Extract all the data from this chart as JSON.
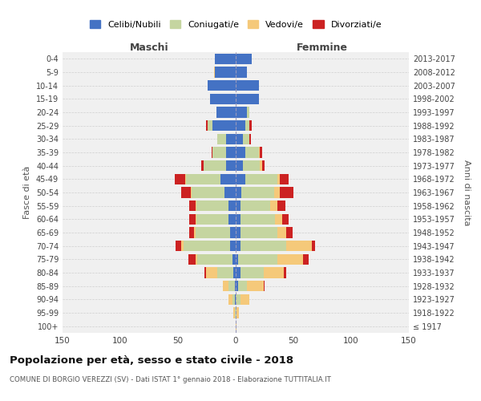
{
  "age_groups": [
    "100+",
    "95-99",
    "90-94",
    "85-89",
    "80-84",
    "75-79",
    "70-74",
    "65-69",
    "60-64",
    "55-59",
    "50-54",
    "45-49",
    "40-44",
    "35-39",
    "30-34",
    "25-29",
    "20-24",
    "15-19",
    "10-14",
    "5-9",
    "0-4"
  ],
  "birth_years": [
    "≤ 1917",
    "1918-1922",
    "1923-1927",
    "1928-1932",
    "1933-1937",
    "1938-1942",
    "1943-1947",
    "1948-1952",
    "1953-1957",
    "1958-1962",
    "1963-1967",
    "1968-1972",
    "1973-1977",
    "1978-1982",
    "1983-1987",
    "1988-1992",
    "1993-1997",
    "1998-2002",
    "2003-2007",
    "2008-2012",
    "2013-2017"
  ],
  "colors": {
    "celibi": "#4472c4",
    "coniugati": "#c5d5a0",
    "vedovi": "#f5c97a",
    "divorziati": "#cc2222"
  },
  "males": {
    "celibi": [
      0,
      0,
      1,
      1,
      2,
      3,
      5,
      5,
      6,
      6,
      10,
      13,
      8,
      8,
      8,
      20,
      17,
      22,
      24,
      18,
      18
    ],
    "coniugati": [
      0,
      1,
      2,
      5,
      14,
      30,
      40,
      30,
      28,
      28,
      28,
      30,
      20,
      12,
      8,
      4,
      0,
      0,
      0,
      0,
      0
    ],
    "vedovi": [
      0,
      1,
      3,
      5,
      10,
      2,
      2,
      1,
      1,
      1,
      1,
      1,
      0,
      0,
      0,
      0,
      0,
      0,
      0,
      1,
      0
    ],
    "divorziati": [
      0,
      0,
      0,
      0,
      1,
      6,
      5,
      4,
      5,
      5,
      8,
      9,
      2,
      1,
      0,
      2,
      0,
      0,
      0,
      0,
      0
    ]
  },
  "females": {
    "celibi": [
      0,
      0,
      0,
      2,
      4,
      2,
      4,
      4,
      4,
      4,
      5,
      8,
      6,
      8,
      6,
      8,
      10,
      20,
      20,
      10,
      14
    ],
    "coniugati": [
      0,
      1,
      4,
      8,
      20,
      34,
      40,
      32,
      30,
      26,
      28,
      28,
      15,
      12,
      6,
      4,
      2,
      0,
      0,
      0,
      0
    ],
    "vedovi": [
      1,
      2,
      8,
      14,
      18,
      22,
      22,
      8,
      6,
      6,
      5,
      2,
      2,
      1,
      0,
      0,
      0,
      0,
      0,
      0,
      0
    ],
    "divorziati": [
      0,
      0,
      0,
      1,
      2,
      5,
      3,
      5,
      6,
      7,
      12,
      8,
      2,
      2,
      1,
      2,
      0,
      0,
      0,
      0,
      0
    ]
  },
  "xlim": 150,
  "title": "Popolazione per età, sesso e stato civile - 2018",
  "subtitle": "COMUNE DI BORGIO VEREZZI (SV) - Dati ISTAT 1° gennaio 2018 - Elaborazione TUTTITALIA.IT",
  "ylabel_left": "Fasce di età",
  "ylabel_right": "Anni di nascita",
  "label_maschi": "Maschi",
  "label_femmine": "Femmine",
  "legend_labels": [
    "Celibi/Nubili",
    "Coniugati/e",
    "Vedovi/e",
    "Divorziati/e"
  ],
  "bg_color": "#f0f0f0",
  "grid_color": "#d0d0d0"
}
